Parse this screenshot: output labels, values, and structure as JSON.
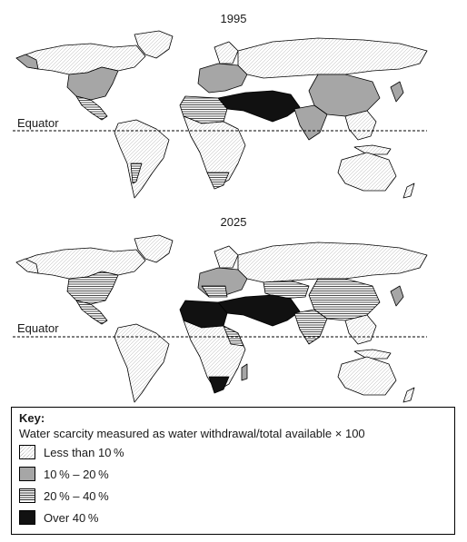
{
  "maps": [
    {
      "title": "1995",
      "equator_label": "Equator"
    },
    {
      "title": "2025",
      "equator_label": "Equator"
    }
  ],
  "key": {
    "title": "Key:",
    "description": "Water scarcity measured as water withdrawal/total available × 100",
    "items": [
      {
        "label": "Less than 10 %",
        "pattern": "dotted-diagonal"
      },
      {
        "label": "10 % – 20 %",
        "pattern": "grey"
      },
      {
        "label": "20 % – 40 %",
        "pattern": "horizontal-stripes"
      },
      {
        "label": "Over 40 %",
        "pattern": "black"
      }
    ]
  },
  "colors": {
    "grey": "#a6a6a6",
    "black": "#111111",
    "outline": "#000000"
  }
}
